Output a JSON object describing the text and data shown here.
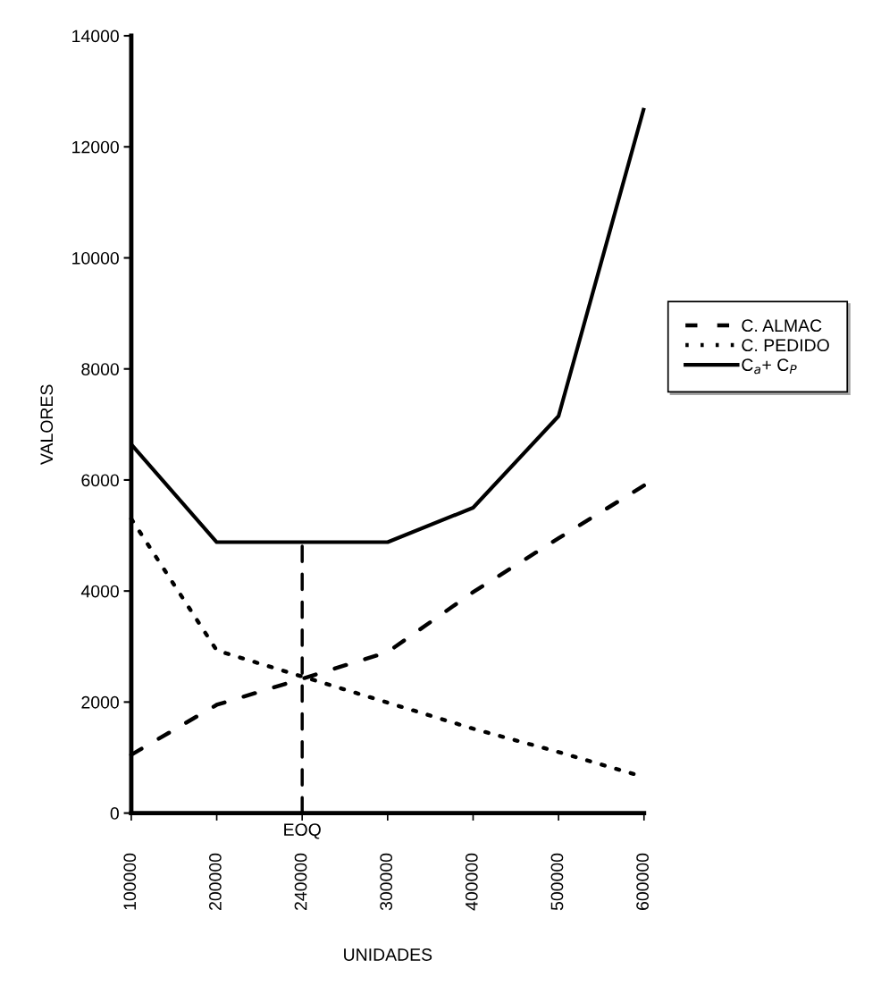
{
  "chart_data": {
    "type": "line",
    "xlabel": "UNIDADES",
    "ylabel": "VALORES",
    "categories": [
      "100000",
      "200000",
      "240000",
      "300000",
      "400000",
      "500000",
      "600000"
    ],
    "series": [
      {
        "name": "C. ALMAC",
        "color": "#000000",
        "line_style": "dashed",
        "values": [
          1050,
          1950,
          2420,
          2900,
          3980,
          4950,
          5900
        ]
      },
      {
        "name": "C. PEDIDO",
        "color": "#000000",
        "line_style": "dotted",
        "values": [
          5300,
          2930,
          2460,
          1990,
          1520,
          1100,
          650
        ]
      },
      {
        "name": "C$_{a}$+ C$_{P}$",
        "color": "#000000",
        "line_style": "solid",
        "values": [
          6640,
          4880,
          4880,
          4880,
          5500,
          7150,
          12700
        ]
      },
      {
        "color": "#000000",
        "line_style": "dashed",
        "x": [
          "240000",
          "240000"
        ],
        "values": [
          0,
          4880
        ]
      }
    ],
    "annotations": [
      {
        "text": "EOQ",
        "x": "240000",
        "y": 0
      }
    ],
    "ylim": [
      0,
      14000
    ],
    "yticks": [
      0,
      2000,
      4000,
      6000,
      8000,
      10000,
      12000,
      14000
    ],
    "grid": false,
    "legend": "right",
    "marker": "none"
  }
}
